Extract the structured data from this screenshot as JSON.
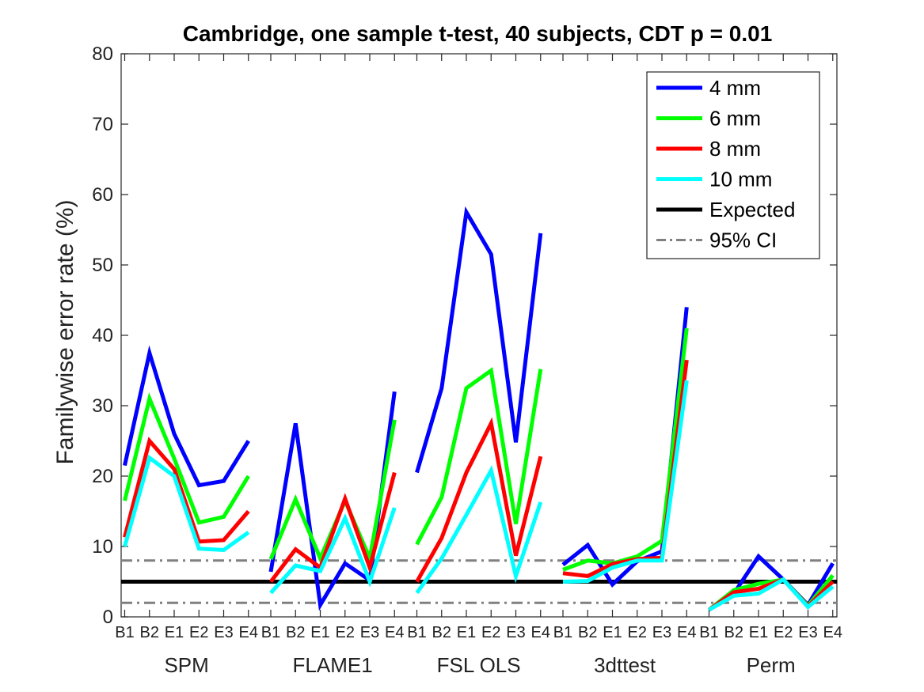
{
  "chart_data": {
    "type": "line",
    "title": "Cambridge, one sample t-test, 40 subjects, CDT p = 0.01",
    "xlabel": "",
    "ylabel": "Familywise error rate (%)",
    "ylim": [
      0,
      80
    ],
    "yticks": [
      0,
      10,
      20,
      30,
      40,
      50,
      60,
      70,
      80
    ],
    "grid": false,
    "legend_position": "top-right",
    "colors": {
      "4 mm": "#0000ff",
      "6 mm": "#00ff00",
      "8 mm": "#ff0000",
      "10 mm": "#00ffff",
      "Expected": "#000000",
      "95% CI": "#808080"
    },
    "tick_labels": [
      "B1",
      "B2",
      "E1",
      "E2",
      "E3",
      "E4"
    ],
    "groups": [
      {
        "name": "SPM",
        "series": {
          "4 mm": [
            21.5,
            37.5,
            26.0,
            18.7,
            19.3,
            25.0
          ],
          "6 mm": [
            16.5,
            31.0,
            22.5,
            13.4,
            14.2,
            20.0
          ],
          "8 mm": [
            11.3,
            25.0,
            21.0,
            10.7,
            10.9,
            15.0
          ],
          "10 mm": [
            10.0,
            22.6,
            20.0,
            9.7,
            9.5,
            12.0
          ]
        }
      },
      {
        "name": "FLAME1",
        "series": {
          "4 mm": [
            6.4,
            27.5,
            1.7,
            7.6,
            5.2,
            32.0
          ],
          "6 mm": [
            8.2,
            16.7,
            8.3,
            16.5,
            8.3,
            28.0
          ],
          "8 mm": [
            5.0,
            9.6,
            7.0,
            16.8,
            7.0,
            20.5
          ],
          "10 mm": [
            3.4,
            7.3,
            6.5,
            14.0,
            5.0,
            15.5
          ]
        }
      },
      {
        "name": "FSL OLS",
        "series": {
          "4 mm": [
            20.5,
            32.5,
            57.5,
            51.5,
            24.8,
            54.5
          ],
          "6 mm": [
            10.3,
            17.0,
            32.5,
            35.0,
            13.2,
            35.2
          ],
          "8 mm": [
            5.0,
            11.2,
            20.5,
            27.5,
            8.7,
            22.8
          ],
          "10 mm": [
            3.4,
            8.3,
            14.5,
            20.8,
            5.8,
            16.3
          ]
        }
      },
      {
        "name": "3dttest",
        "series": {
          "4 mm": [
            7.4,
            10.2,
            4.6,
            7.9,
            9.3,
            44.0
          ],
          "6 mm": [
            6.7,
            8.0,
            7.6,
            8.6,
            10.8,
            41.0
          ],
          "8 mm": [
            6.2,
            5.8,
            7.5,
            8.2,
            8.4,
            36.5
          ],
          "10 mm": [
            5.0,
            5.1,
            7.0,
            8.0,
            8.0,
            33.6
          ]
        }
      },
      {
        "name": "Perm",
        "series": {
          "4 mm": [
            1.0,
            3.3,
            8.6,
            5.3,
            1.7,
            7.6
          ],
          "6 mm": [
            1.0,
            3.8,
            4.7,
            5.3,
            1.6,
            5.9
          ],
          "8 mm": [
            1.0,
            3.5,
            4.0,
            5.3,
            1.5,
            5.0
          ],
          "10 mm": [
            1.0,
            3.0,
            3.3,
            5.3,
            1.4,
            4.3
          ]
        }
      }
    ],
    "reference_lines": [
      {
        "name": "Expected",
        "y": 5
      },
      {
        "name": "95% CI",
        "y": 8
      },
      {
        "name": "95% CI",
        "y": 2
      }
    ],
    "legend": [
      "4 mm",
      "6 mm",
      "8 mm",
      "10 mm",
      "Expected",
      "95% CI"
    ]
  }
}
